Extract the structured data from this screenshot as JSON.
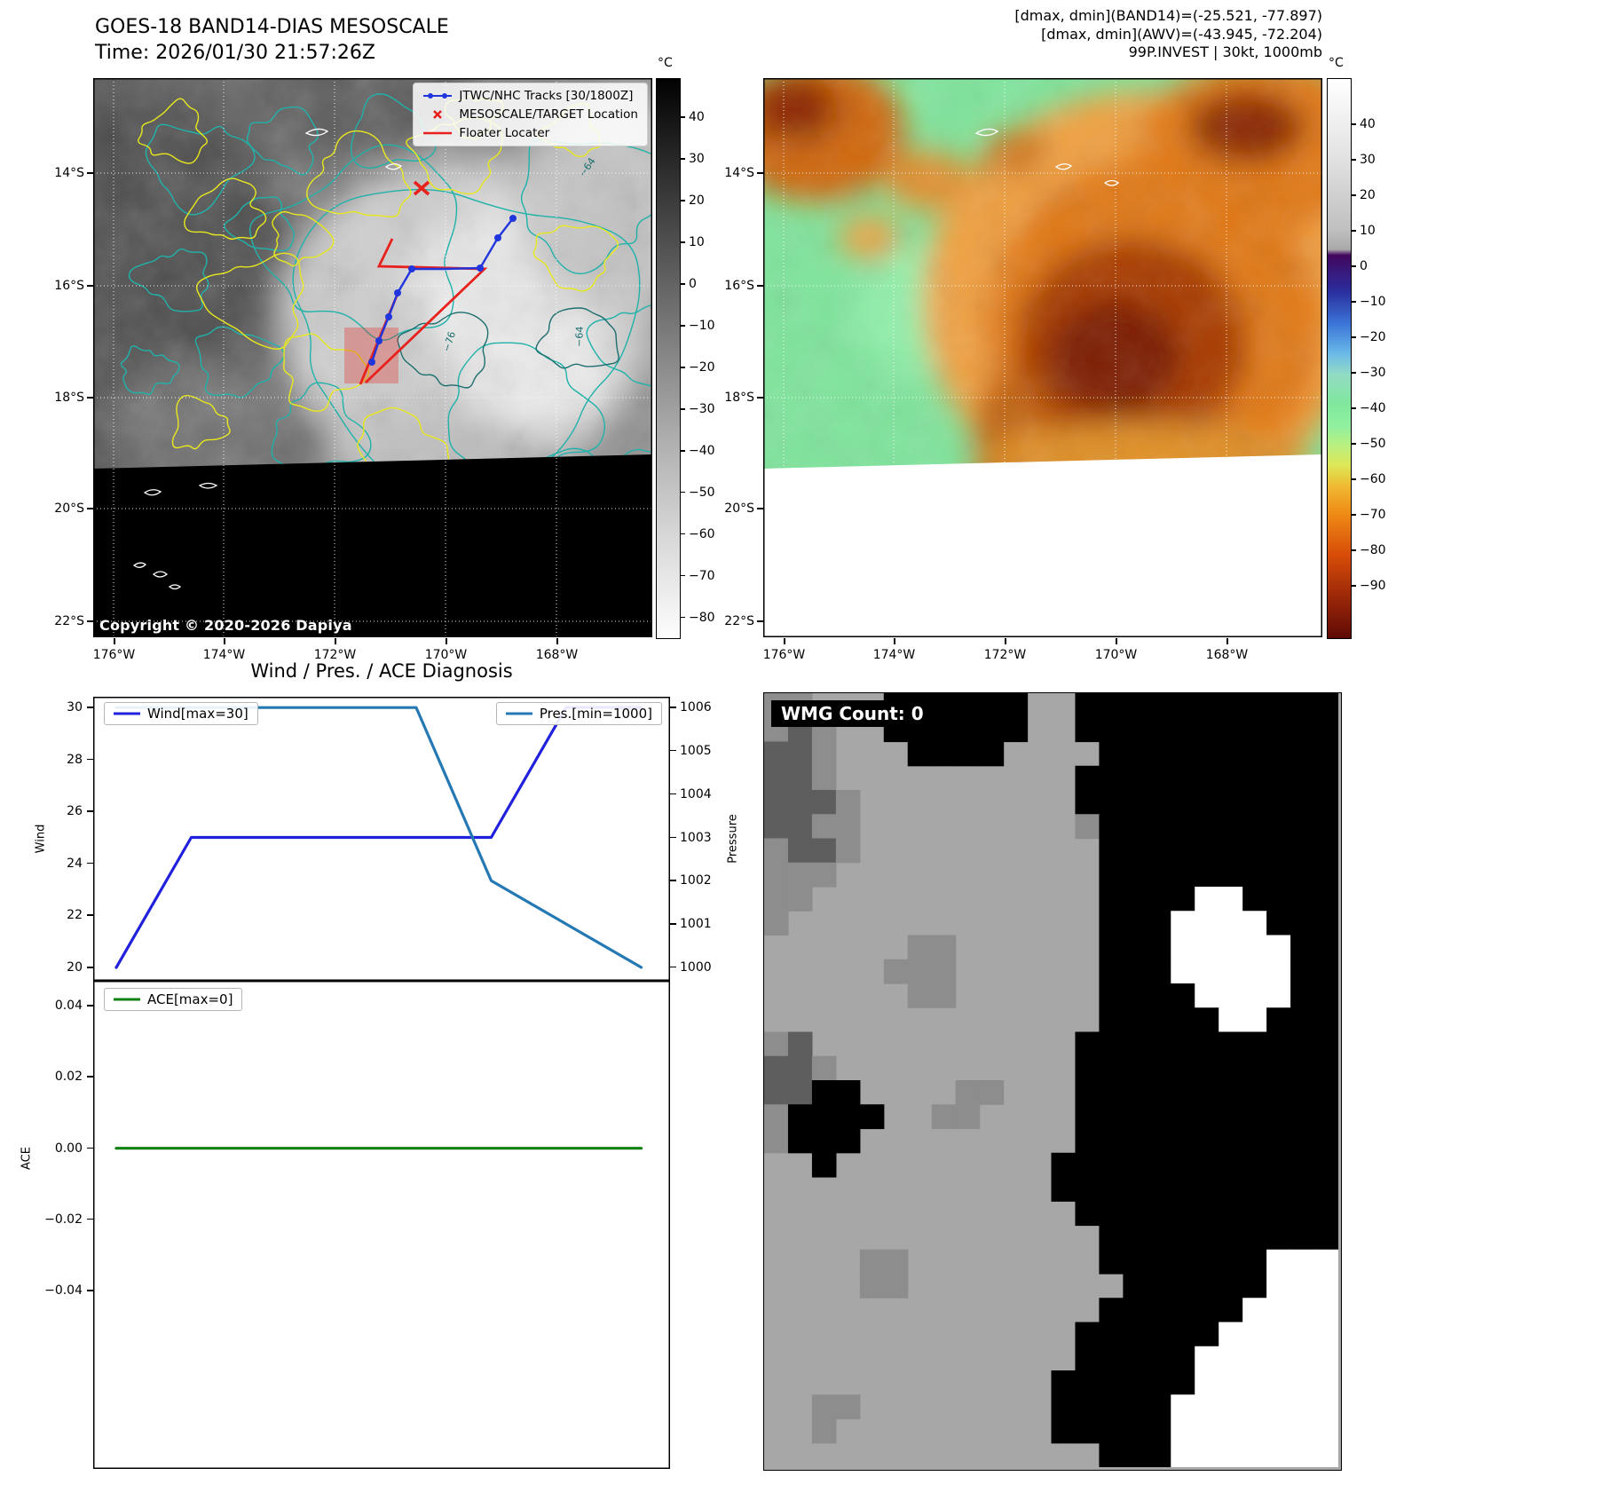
{
  "band14": {
    "title": "GOES-18 BAND14-DIAS MESOSCALE",
    "time_label": "Time: 2026/01/30 21:57:26Z",
    "copyright": "Copyright © 2020-2026 Dapiya",
    "legend": {
      "track": "JTWC/NHC Tracks [30/1800Z]",
      "target": "MESOSCALE/TARGET Location",
      "floater": "Floater Locater"
    },
    "contour_labels": [
      "−76",
      "−64",
      "−64"
    ],
    "lat_ticks": [
      "14°S",
      "16°S",
      "18°S",
      "20°S",
      "22°S"
    ],
    "lon_ticks": [
      "176°W",
      "174°W",
      "172°W",
      "170°W",
      "168°W"
    ],
    "colorb­ar_note": "grayscale IR brightness temperature",
    "colorbar": {
      "unit": "°C",
      "range": [
        40,
        -80
      ],
      "ticks": [
        "40",
        "30",
        "20",
        "10",
        "0",
        "−10",
        "−20",
        "−30",
        "−40",
        "−50",
        "−60",
        "−70",
        "−80"
      ]
    }
  },
  "awv": {
    "header_lines": [
      "[dmax, dmin](BAND14)=(-25.521, -77.897)",
      "[dmax, dmin](AWV)=(-43.945, -72.204)",
      "99P.INVEST | 30kt, 1000mb"
    ],
    "lat_ticks": [
      "14°S",
      "16°S",
      "18°S",
      "20°S",
      "22°S"
    ],
    "lon_ticks": [
      "176°W",
      "174°W",
      "172°W",
      "170°W",
      "168°W"
    ],
    "colorbar": {
      "unit": "°C",
      "range": [
        40,
        -90
      ],
      "ticks": [
        "40",
        "30",
        "20",
        "10",
        "0",
        "−10",
        "−20",
        "−30",
        "−40",
        "−50",
        "−60",
        "−70",
        "−80",
        "−90"
      ]
    }
  },
  "diagnosis": {
    "title": "Wind / Pres. / ACE Diagnosis",
    "wind_legend": "Wind[max=30]",
    "pres_legend": "Pres.[min=1000]",
    "ace_legend": "ACE[max=0]",
    "wind_axis_label": "Wind",
    "pressure_axis_label": "Pressure",
    "ace_axis_label": "ACE"
  },
  "wmg": {
    "label": "WMG Count: 0",
    "palette": {
      "w": "#ffffff",
      "l": "#a7a7a7",
      "m": "#8d8d8d",
      "d": "#5e5e5e",
      "k": "#000000"
    },
    "grid": [
      "mmlllkkkkkkllkkkkkkkkkkk",
      "mdmllkkkkkkllkkkkkkkkkkk",
      "ddmlllkkkkllllkkkkkkkkkk",
      "ddmllllllllllkkkkkkkkkkk",
      "dddmlllllllllkkkkkkkkkkk",
      "ddmmlllllllllmkkkkkkkkkk",
      "mddmllllllllllkkkkkkkkkk",
      "mmmlllllllllllkkkkkkkkkk",
      "mmllllllllllllkkkkwwkkkk",
      "mlllllllllllllkkkwwwwkkk",
      "llllllmmllllllkkkwwwwwkk",
      "lllllmmmllllllkkkwwwwwkk",
      "llllllmmllllllkkkkwwwwkk",
      "llllllllllllllkkkkkwwkkk",
      "mdlllllllllllkkkkkkkkkkk",
      "ddmllllllllllkkkkkkkkkkk",
      "ddkkllllmmlllkkkkkkkkkkk",
      "mkkkkllmmllllkkkkkkkkkkk",
      "mkkklllllllllkkkkkkkkkkk",
      "llklllllllllkkkkkkkkkkkk",
      "llllllllllllkkkkkkkkkkkk",
      "lllllllllllllkkkkkkkkkkk",
      "llllllllllllllkkkkkkkkkk",
      "llllmmllllllllkkkkkkkwww",
      "llllmmlllllllllkkkkkkwww",
      "llllllllllllllkkkkkkwwww",
      "lllllllllllllkkkkkkwwwww",
      "lllllllllllllkkkkkwwwwww",
      "llllllllllllkkkkkkwwwwww",
      "llmmllllllllkkkkkwwwwwww",
      "llmlllllllllkkkkkwwwwwww",
      "llllllllllllllkkkwwwwwww"
    ]
  },
  "chart_data": [
    {
      "type": "line",
      "title": "Wind / Pres. / ACE Diagnosis",
      "x": [
        0,
        1,
        2,
        3,
        4,
        5,
        6,
        7
      ],
      "x_note": "time steps; no x tick labels shown",
      "series": [
        {
          "name": "Wind",
          "legend": "Wind[max=30]",
          "axis": "left",
          "color": "#2020dd",
          "values": [
            20,
            25,
            25,
            25,
            25,
            25,
            30,
            30
          ]
        },
        {
          "name": "Pres",
          "legend": "Pres.[min=1000]",
          "axis": "right",
          "color": "#2478b4",
          "values": [
            1006,
            1006,
            1006,
            1006,
            1006,
            1002,
            1001,
            1000
          ]
        }
      ],
      "left_axis": {
        "label": "Wind",
        "lim": [
          19.49,
          30.41
        ],
        "ticks": [
          20,
          22,
          24,
          26,
          28,
          30
        ]
      },
      "right_axis": {
        "label": "Pressure",
        "lim": [
          999.69,
          1006.25
        ],
        "ticks": [
          1000,
          1001,
          1002,
          1003,
          1004,
          1005,
          1006
        ]
      },
      "grid": false,
      "legend_position": [
        "upper left",
        "upper right"
      ]
    },
    {
      "type": "line",
      "x": [
        0,
        1,
        2,
        3,
        4,
        5,
        6,
        7
      ],
      "series": [
        {
          "name": "ACE",
          "legend": "ACE[max=0]",
          "axis": "left",
          "color": "#108010",
          "values": [
            0,
            0,
            0,
            0,
            0,
            0,
            0,
            0
          ]
        }
      ],
      "left_axis": {
        "label": "ACE",
        "lim": [
          -0.09,
          0.047
        ],
        "ticks": [
          0.04,
          0.02,
          0,
          -0.02,
          -0.04
        ],
        "tick_labels": [
          "0.04",
          "0.02",
          "0.00",
          "−0.02",
          "−0.04"
        ]
      },
      "grid": false,
      "legend_position": [
        "upper left"
      ]
    }
  ]
}
